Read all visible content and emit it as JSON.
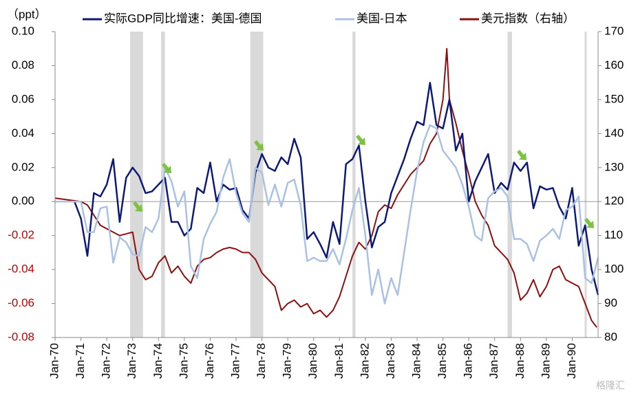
{
  "chart_data": {
    "type": "line",
    "y_unit_label": "（ppt）",
    "watermark": "格隆汇",
    "xlim": [
      1970,
      1991
    ],
    "xticks": [
      {
        "value": 1970,
        "label": "Jan-70"
      },
      {
        "value": 1971,
        "label": "Jan-71"
      },
      {
        "value": 1972,
        "label": "Jan-72"
      },
      {
        "value": 1973,
        "label": "Jan-73"
      },
      {
        "value": 1974,
        "label": "Jan-74"
      },
      {
        "value": 1975,
        "label": "Jan-75"
      },
      {
        "value": 1976,
        "label": "Jan-76"
      },
      {
        "value": 1977,
        "label": "Jan-77"
      },
      {
        "value": 1978,
        "label": "Jan-78"
      },
      {
        "value": 1979,
        "label": "Jan-79"
      },
      {
        "value": 1980,
        "label": "Jan-80"
      },
      {
        "value": 1981,
        "label": "Jan-81"
      },
      {
        "value": 1982,
        "label": "Jan-82"
      },
      {
        "value": 1983,
        "label": "Jan-83"
      },
      {
        "value": 1984,
        "label": "Jan-84"
      },
      {
        "value": 1985,
        "label": "Jan-85"
      },
      {
        "value": 1986,
        "label": "Jan-86"
      },
      {
        "value": 1987,
        "label": "Jan-87"
      },
      {
        "value": 1988,
        "label": "Jan-88"
      },
      {
        "value": 1989,
        "label": "Jan-89"
      },
      {
        "value": 1990,
        "label": "Jan-90"
      }
    ],
    "ylim": [
      -0.08,
      0.1
    ],
    "yticks": [
      {
        "value": 0.1,
        "label": "0.10"
      },
      {
        "value": 0.08,
        "label": "0.08"
      },
      {
        "value": 0.06,
        "label": "0.06"
      },
      {
        "value": 0.04,
        "label": "0.04"
      },
      {
        "value": 0.02,
        "label": "0.02"
      },
      {
        "value": 0,
        "label": "0.00"
      },
      {
        "value": -0.02,
        "label": "-0.02"
      },
      {
        "value": -0.04,
        "label": "-0.04"
      },
      {
        "value": -0.06,
        "label": "-0.06"
      },
      {
        "value": -0.08,
        "label": "-0.08"
      }
    ],
    "negative_tick_color": "#c00000",
    "y2lim": [
      80,
      170
    ],
    "y2ticks": [
      170,
      160,
      150,
      140,
      130,
      120,
      110,
      100,
      90,
      80
    ],
    "shaded_periods": [
      [
        1972.9,
        1973.4
      ],
      [
        1974.1,
        1974.25
      ],
      [
        1977.55,
        1978.05
      ],
      [
        1981.5,
        1981.62
      ],
      [
        1987.5,
        1987.67
      ],
      [
        1990.48,
        1990.56
      ]
    ],
    "shade_color": "#d9d9d9",
    "x": [
      1970,
      1970.25,
      1970.5,
      1970.75,
      1971,
      1971.25,
      1971.5,
      1971.75,
      1972,
      1972.25,
      1972.5,
      1972.75,
      1973,
      1973.25,
      1973.5,
      1973.75,
      1974,
      1974.25,
      1974.5,
      1974.75,
      1975,
      1975.25,
      1975.5,
      1975.75,
      1976,
      1976.25,
      1976.5,
      1976.75,
      1977,
      1977.25,
      1977.5,
      1977.75,
      1978,
      1978.25,
      1978.5,
      1978.75,
      1979,
      1979.25,
      1979.5,
      1979.75,
      1980,
      1980.25,
      1980.5,
      1980.75,
      1981,
      1981.25,
      1981.5,
      1981.75,
      1982,
      1982.25,
      1982.5,
      1982.75,
      1983,
      1983.25,
      1983.5,
      1983.75,
      1984,
      1984.25,
      1984.5,
      1984.75,
      1985,
      1985.25,
      1985.5,
      1985.75,
      1986,
      1986.25,
      1986.5,
      1986.75,
      1987,
      1987.25,
      1987.5,
      1987.75,
      1988,
      1988.25,
      1988.5,
      1988.75,
      1989,
      1989.25,
      1989.5,
      1989.75,
      1990,
      1990.25,
      1990.5,
      1990.75,
      1991
    ],
    "series": [
      {
        "name": "实际GDP同比增速：美国-德国",
        "color": "#0d1a75",
        "width": 2.5,
        "values": [
          0,
          0,
          0,
          0,
          -0.01,
          -0.032,
          0.005,
          0.003,
          0.01,
          0.025,
          -0.012,
          0.014,
          0.02,
          0.015,
          0.005,
          0.006,
          0.01,
          0.014,
          -0.012,
          -0.012,
          -0.02,
          -0.016,
          0.008,
          0.005,
          0.023,
          0,
          0.01,
          0.007,
          0.008,
          -0.005,
          -0.01,
          0.017,
          0.028,
          0.02,
          0.018,
          0.026,
          0.022,
          0.037,
          0.026,
          -0.022,
          -0.018,
          -0.025,
          -0.033,
          -0.012,
          -0.025,
          0.022,
          0.025,
          0.033,
          0,
          -0.027,
          -0.015,
          -0.012,
          0.005,
          0.015,
          0.025,
          0.037,
          0.047,
          0.045,
          0.07,
          0.045,
          0.043,
          0.06,
          0.03,
          0.04,
          0,
          0.012,
          0.02,
          0.028,
          0.005,
          0.011,
          0.007,
          0.023,
          0.018,
          0.023,
          -0.004,
          0.009,
          0.007,
          0.008,
          -0.003,
          -0.01,
          0.008,
          -0.026,
          -0.014,
          -0.04,
          -0.055
        ]
      },
      {
        "name": "美国-日本",
        "color": "#a9c1e3",
        "width": 2.5,
        "values": [
          0,
          0,
          0,
          0,
          0,
          -0.018,
          -0.018,
          -0.004,
          -0.003,
          -0.036,
          -0.021,
          -0.024,
          -0.031,
          -0.032,
          -0.015,
          -0.018,
          -0.01,
          0.02,
          0.012,
          -0.003,
          0.006,
          -0.038,
          -0.045,
          -0.022,
          -0.013,
          -0.006,
          0.014,
          0.025,
          0.005,
          -0.007,
          -0.012,
          0.02,
          0.017,
          -0.002,
          0.01,
          -0.003,
          0.011,
          0.013,
          -0.002,
          -0.035,
          -0.033,
          -0.035,
          -0.035,
          -0.028,
          -0.037,
          -0.022,
          -0.005,
          0.008,
          -0.02,
          -0.055,
          -0.04,
          -0.06,
          -0.045,
          -0.055,
          -0.03,
          -0.005,
          0.018,
          0.035,
          0.045,
          0.043,
          0.03,
          0.025,
          0.02,
          0.01,
          -0.003,
          -0.02,
          -0.023,
          0.002,
          0.006,
          0.008,
          0.003,
          -0.022,
          -0.022,
          -0.025,
          -0.035,
          -0.023,
          -0.02,
          -0.016,
          -0.022,
          -0.005,
          -0.003,
          0.003,
          -0.045,
          -0.048,
          -0.033
        ]
      },
      {
        "name": "美元指数（右轴）",
        "color": "#8b0f0f",
        "width": 2,
        "axis": "y2",
        "x": [
          1970,
          1970.5,
          1971,
          1971.25,
          1971.5,
          1971.75,
          1972,
          1972.25,
          1972.5,
          1972.75,
          1973,
          1973.25,
          1973.5,
          1973.75,
          1974,
          1974.25,
          1974.5,
          1974.75,
          1975,
          1975.25,
          1975.5,
          1975.75,
          1976,
          1976.25,
          1976.5,
          1976.75,
          1977,
          1977.25,
          1977.5,
          1977.75,
          1978,
          1978.25,
          1978.5,
          1978.75,
          1979,
          1979.25,
          1979.5,
          1979.75,
          1980,
          1980.25,
          1980.5,
          1980.75,
          1981,
          1981.25,
          1981.5,
          1981.75,
          1982,
          1982.25,
          1982.5,
          1982.75,
          1983,
          1983.25,
          1983.5,
          1983.75,
          1984,
          1984.25,
          1984.5,
          1984.75,
          1985,
          1985.15,
          1985.25,
          1985.5,
          1985.75,
          1986,
          1986.25,
          1986.5,
          1986.75,
          1987,
          1987.25,
          1987.5,
          1987.75,
          1988,
          1988.25,
          1988.5,
          1988.75,
          1989,
          1989.25,
          1989.5,
          1989.75,
          1990,
          1990.25,
          1990.5,
          1990.75,
          1990.95
        ],
        "values": [
          121,
          120.5,
          120,
          119,
          116,
          113,
          112,
          111,
          110,
          110.5,
          111,
          100,
          97,
          98,
          102,
          104,
          99,
          101,
          98,
          96,
          101,
          103,
          103.5,
          105,
          106,
          106.5,
          106,
          105,
          105,
          103,
          99,
          97,
          95,
          88,
          90,
          91,
          89,
          90,
          87,
          88,
          86,
          88,
          92,
          98,
          104,
          108,
          106,
          110,
          117,
          119,
          118,
          122,
          125,
          128,
          130,
          132,
          137,
          140,
          150,
          165,
          150,
          143,
          135,
          128,
          120,
          116,
          113,
          107,
          105,
          103,
          99,
          91,
          93,
          97,
          92,
          95,
          100,
          101,
          97,
          96,
          95,
          90,
          85,
          83
        ]
      }
    ]
  }
}
